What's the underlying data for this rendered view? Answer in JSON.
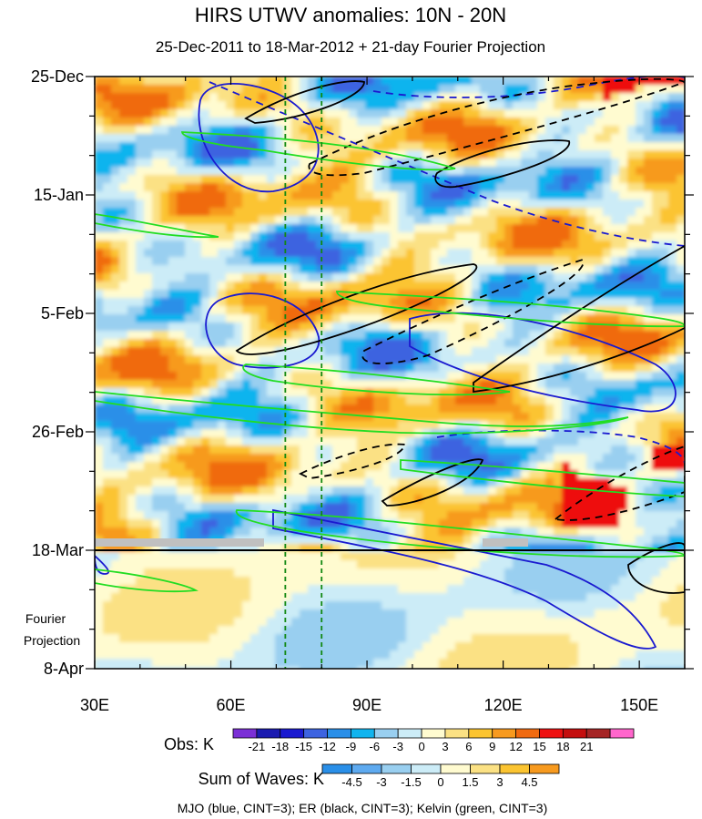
{
  "chart_data": {
    "type": "heatmap",
    "title": "HIRS UTWV anomalies: 10N - 20N",
    "subtitle": "25-Dec-2011 to 18-Mar-2012 + 21-day Fourier Projection",
    "x_axis": {
      "range_degE": [
        30,
        160
      ],
      "ticks": [
        {
          "value": 30,
          "label": "30E"
        },
        {
          "value": 60,
          "label": "60E"
        },
        {
          "value": 90,
          "label": "90E"
        },
        {
          "value": 120,
          "label": "120E"
        },
        {
          "value": 150,
          "label": "150E"
        }
      ]
    },
    "y_axis": {
      "range_days_from_start": [
        0,
        105
      ],
      "ticks": [
        {
          "day": 0,
          "label": "25-Dec"
        },
        {
          "day": 21,
          "label": "15-Jan"
        },
        {
          "day": 42,
          "label": "5-Feb"
        },
        {
          "day": 63,
          "label": "26-Feb"
        },
        {
          "day": 84,
          "label": "18-Mar"
        },
        {
          "day": 105,
          "label": "8-Apr"
        }
      ]
    },
    "projection_start_day": 84,
    "projection_label_line1": "Fourier",
    "projection_label_line2": "Projection",
    "reference_lines_degE": [
      72,
      80
    ],
    "obs_colorbar": {
      "label": "Obs: K",
      "levels": [
        "-21",
        "-18",
        "-15",
        "-12",
        "-9",
        "-6",
        "-3",
        "0",
        "3",
        "6",
        "9",
        "12",
        "15",
        "18",
        "21"
      ],
      "colors": [
        "#7b2fd6",
        "#1b1bb0",
        "#1a1ad0",
        "#3d63e0",
        "#2a8fe8",
        "#11b4ee",
        "#99cff0",
        "#ccecf7",
        "#fffbd0",
        "#fbe184",
        "#fbc431",
        "#f79a1f",
        "#f06a10",
        "#ee1111",
        "#c40e0e",
        "#a52525",
        "#ff66cc"
      ]
    },
    "waves_colorbar": {
      "label": "Sum of Waves: K",
      "levels": [
        "-4.5",
        "-3",
        "-1.5",
        "0",
        "1.5",
        "3",
        "4.5"
      ],
      "colors": [
        "#2a8fe8",
        "#5eaaf0",
        "#99cff0",
        "#ccecf7",
        "#fffbd0",
        "#fbe184",
        "#fbc431",
        "#f79a1f"
      ]
    },
    "contours": [
      {
        "name": "MJO",
        "color": "#1a1ad0",
        "cint": 3
      },
      {
        "name": "ER",
        "color": "#000000",
        "cint": 3
      },
      {
        "name": "Kelvin",
        "color": "#22dd22",
        "cint": 3
      }
    ],
    "legend_text": "MJO (blue, CINT=3); ER (black, CINT=3); Kelvin (green, CINT=3)"
  }
}
